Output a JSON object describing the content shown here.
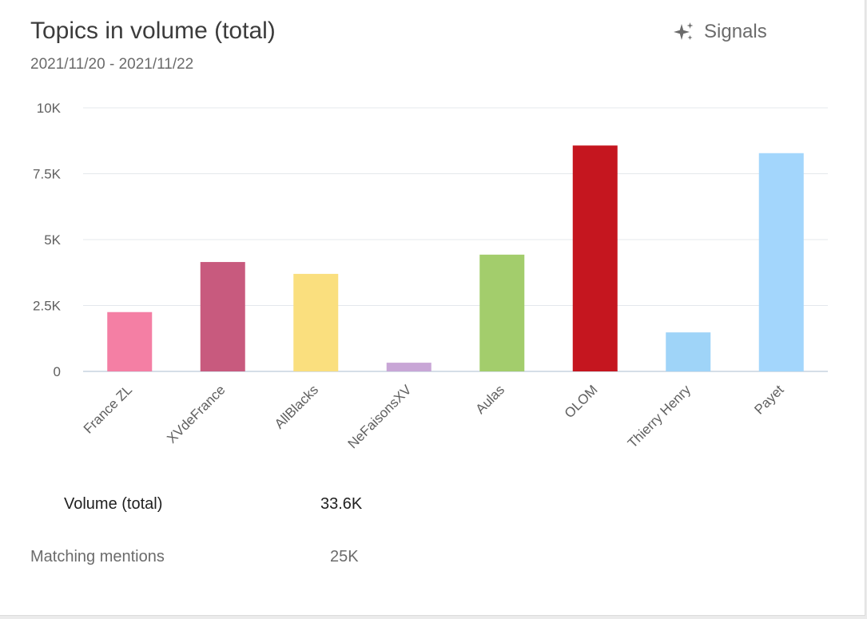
{
  "header": {
    "title": "Topics in volume (total)",
    "date_range": "2021/11/20 - 2021/11/22",
    "signals_label": "Signals",
    "signals_icon": "sparkles-icon"
  },
  "chart_data": {
    "type": "bar",
    "title": "Topics in volume (total)",
    "xlabel": "",
    "ylabel": "",
    "ylim": [
      0,
      10000
    ],
    "yticks": [
      0,
      2500,
      5000,
      7500,
      10000
    ],
    "ytick_labels": [
      "0",
      "2.5K",
      "5K",
      "7.5K",
      "10K"
    ],
    "grid": true,
    "legend": "none",
    "categories": [
      "France ZL",
      "XVdeFrance",
      "AllBlacks",
      "NeFaisonsXV",
      "Aulas",
      "OLOM",
      "Thierry Henry",
      "Payet"
    ],
    "values": [
      2250,
      4150,
      3700,
      330,
      4430,
      8570,
      1480,
      8280
    ],
    "colors": [
      "#f47fa4",
      "#c85a7e",
      "#fadf7e",
      "#c8a6d6",
      "#a3cd6c",
      "#c5161f",
      "#9fd4f8",
      "#a3d6fc"
    ]
  },
  "summary": {
    "volume_label": "Volume (total)",
    "volume_value": "33.6K",
    "matching_label": "Matching mentions",
    "matching_value": "25K"
  }
}
